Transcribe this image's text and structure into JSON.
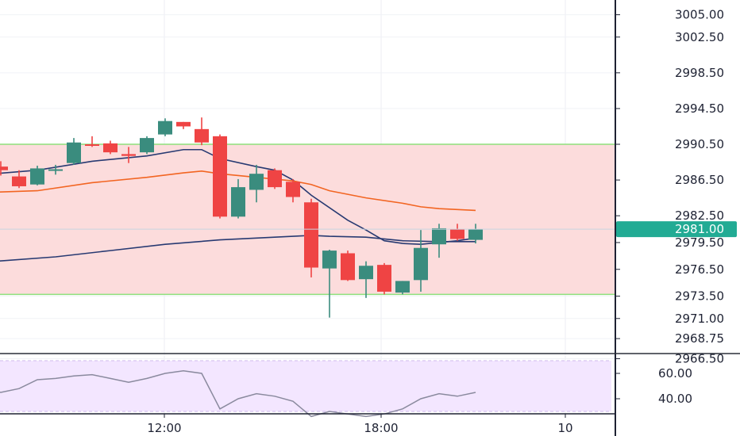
{
  "chart_data": [
    {
      "type": "candlestick",
      "title": "",
      "y_axis_ticks": [
        "3005.00",
        "3002.50",
        "2998.50",
        "2994.50",
        "2990.50",
        "2986.50",
        "2982.50",
        "2979.50",
        "2976.50",
        "2973.50",
        "2971.00",
        "2968.75",
        "2966.50"
      ],
      "x_axis_ticks": [
        "12:00",
        "18:00",
        "10"
      ],
      "last_price": "2981.00",
      "last_price_value": 2981.0,
      "last_price_color": "#22ab94",
      "up_color": "#3a8c7e",
      "down_color": "#ef4444",
      "zone": {
        "top": 2990.5,
        "bottom": 2973.7,
        "fill": "#fcdcdc",
        "border": "#8ee07c"
      },
      "candles": [
        {
          "o": 2988.0,
          "h": 2988.6,
          "c": 2987.6,
          "l": 2987.0,
          "dir": "down"
        },
        {
          "o": 2986.9,
          "h": 2987.6,
          "c": 2985.8,
          "l": 2985.6,
          "dir": "down"
        },
        {
          "o": 2986.0,
          "h": 2988.1,
          "c": 2987.8,
          "l": 2985.9,
          "dir": "up"
        },
        {
          "o": 2987.6,
          "h": 2988.2,
          "c": 2987.7,
          "l": 2987.1,
          "dir": "up"
        },
        {
          "o": 2988.4,
          "h": 2991.2,
          "c": 2990.7,
          "l": 2988.2,
          "dir": "up"
        },
        {
          "o": 2990.5,
          "h": 2991.4,
          "c": 2990.4,
          "l": 2990.2,
          "dir": "down"
        },
        {
          "o": 2990.6,
          "h": 2990.9,
          "c": 2989.6,
          "l": 2989.4,
          "dir": "down"
        },
        {
          "o": 2989.4,
          "h": 2990.2,
          "c": 2989.2,
          "l": 2988.4,
          "dir": "down"
        },
        {
          "o": 2989.6,
          "h": 2991.4,
          "c": 2991.2,
          "l": 2989.4,
          "dir": "up"
        },
        {
          "o": 2991.6,
          "h": 2993.4,
          "c": 2993.1,
          "l": 2991.4,
          "dir": "up"
        },
        {
          "o": 2993.0,
          "h": 2993.0,
          "c": 2992.5,
          "l": 2992.2,
          "dir": "down"
        },
        {
          "o": 2992.2,
          "h": 2993.5,
          "c": 2990.7,
          "l": 2990.4,
          "dir": "down"
        },
        {
          "o": 2991.4,
          "h": 2991.6,
          "c": 2982.4,
          "l": 2982.2,
          "dir": "down"
        },
        {
          "o": 2982.4,
          "h": 2986.6,
          "c": 2985.7,
          "l": 2982.2,
          "dir": "up"
        },
        {
          "o": 2985.4,
          "h": 2988.2,
          "c": 2987.2,
          "l": 2984.0,
          "dir": "up"
        },
        {
          "o": 2987.6,
          "h": 2987.8,
          "c": 2985.7,
          "l": 2985.5,
          "dir": "down"
        },
        {
          "o": 2986.3,
          "h": 2986.6,
          "c": 2984.6,
          "l": 2984.0,
          "dir": "down"
        },
        {
          "o": 2984.0,
          "h": 2984.4,
          "c": 2976.7,
          "l": 2975.6,
          "dir": "down"
        },
        {
          "o": 2976.6,
          "h": 2978.7,
          "c": 2978.6,
          "l": 2971.1,
          "dir": "up"
        },
        {
          "o": 2978.3,
          "h": 2978.6,
          "c": 2975.3,
          "l": 2975.2,
          "dir": "down"
        },
        {
          "o": 2975.4,
          "h": 2977.4,
          "c": 2976.9,
          "l": 2973.3,
          "dir": "up"
        },
        {
          "o": 2977.0,
          "h": 2977.2,
          "c": 2974.0,
          "l": 2973.7,
          "dir": "down"
        },
        {
          "o": 2973.9,
          "h": 2975.2,
          "c": 2975.2,
          "l": 2973.7,
          "dir": "up"
        },
        {
          "o": 2975.3,
          "h": 2980.9,
          "c": 2978.9,
          "l": 2974.0,
          "dir": "up"
        },
        {
          "o": 2979.3,
          "h": 2981.6,
          "c": 2981.1,
          "l": 2977.8,
          "dir": "up"
        },
        {
          "o": 2981.0,
          "h": 2981.6,
          "c": 2979.9,
          "l": 2979.7,
          "dir": "down"
        },
        {
          "o": 2979.8,
          "h": 2981.6,
          "c": 2981.0,
          "l": 2979.4,
          "dir": "up"
        }
      ],
      "moving_averages": [
        {
          "color": "#283a72",
          "points": [
            [
              -1,
              2987.1
            ],
            [
              2,
              2987.6
            ],
            [
              5,
              2988.6
            ],
            [
              8,
              2989.2
            ],
            [
              10,
              2989.9
            ],
            [
              11,
              2989.9
            ],
            [
              12,
              2988.9
            ],
            [
              14,
              2988.0
            ],
            [
              15,
              2987.6
            ],
            [
              16,
              2986.5
            ],
            [
              17,
              2984.8
            ],
            [
              19,
              2982.0
            ],
            [
              20,
              2980.9
            ],
            [
              21,
              2979.7
            ],
            [
              22,
              2979.4
            ],
            [
              23,
              2979.3
            ],
            [
              24,
              2979.5
            ],
            [
              25,
              2979.7
            ],
            [
              26,
              2980.0
            ]
          ]
        },
        {
          "color": "#f26522",
          "points": [
            [
              -1,
              2985.1
            ],
            [
              2,
              2985.3
            ],
            [
              5,
              2986.2
            ],
            [
              8,
              2986.8
            ],
            [
              10,
              2987.3
            ],
            [
              11,
              2987.5
            ],
            [
              12,
              2987.2
            ],
            [
              14,
              2986.8
            ],
            [
              16,
              2986.4
            ],
            [
              17,
              2986.0
            ],
            [
              18,
              2985.3
            ],
            [
              20,
              2984.5
            ],
            [
              22,
              2983.9
            ],
            [
              23,
              2983.5
            ],
            [
              24,
              2983.3
            ],
            [
              26,
              2983.1
            ]
          ]
        },
        {
          "color": "#283a72",
          "points": [
            [
              -1,
              2977.3
            ],
            [
              3,
              2977.9
            ],
            [
              6,
              2978.6
            ],
            [
              9,
              2979.3
            ],
            [
              12,
              2979.8
            ],
            [
              15,
              2980.1
            ],
            [
              17,
              2980.3
            ],
            [
              18,
              2980.2
            ],
            [
              20,
              2980.1
            ],
            [
              22,
              2979.7
            ],
            [
              24,
              2979.6
            ],
            [
              26,
              2979.6
            ]
          ]
        }
      ],
      "rsi": {
        "ticks": [
          "60.00",
          "40.00"
        ],
        "color": "#8a8a9e",
        "values": [
          [
            -1,
            48
          ],
          [
            0,
            45
          ],
          [
            1,
            48
          ],
          [
            2,
            55
          ],
          [
            3,
            56
          ],
          [
            4,
            58
          ],
          [
            5,
            59
          ],
          [
            6,
            56
          ],
          [
            7,
            53
          ],
          [
            8,
            56
          ],
          [
            9,
            60
          ],
          [
            10,
            62
          ],
          [
            11,
            60
          ],
          [
            12,
            32
          ],
          [
            13,
            40
          ],
          [
            14,
            44
          ],
          [
            15,
            42
          ],
          [
            16,
            38
          ],
          [
            17,
            26
          ],
          [
            18,
            30
          ],
          [
            19,
            28
          ],
          [
            20,
            26
          ],
          [
            21,
            28
          ],
          [
            22,
            32
          ],
          [
            23,
            40
          ],
          [
            24,
            44
          ],
          [
            25,
            42
          ],
          [
            26,
            45
          ]
        ]
      }
    }
  ]
}
